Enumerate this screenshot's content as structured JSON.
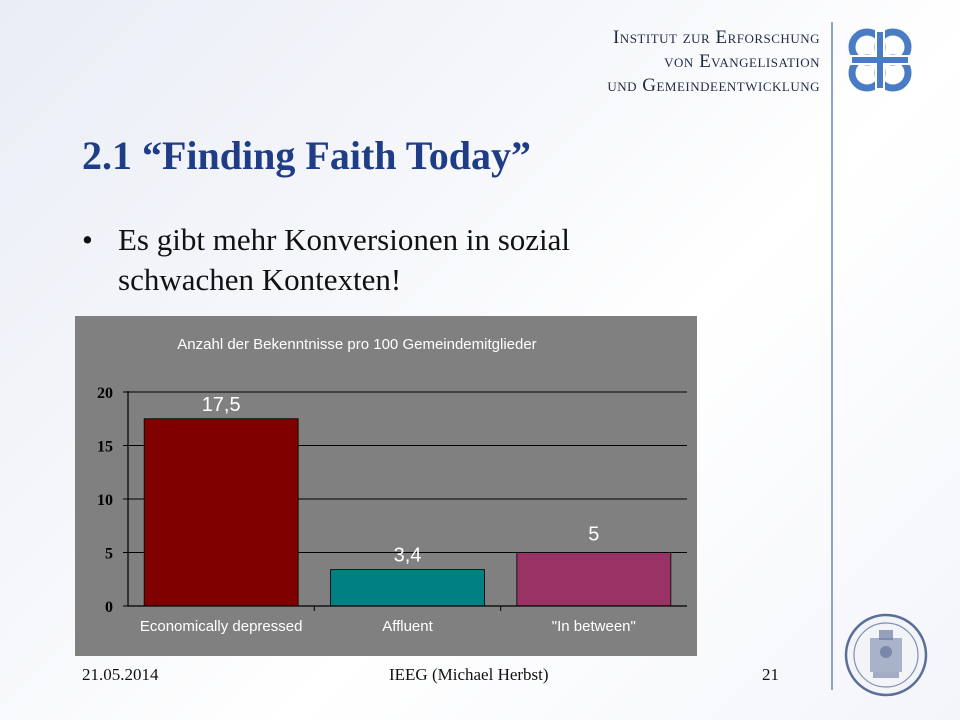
{
  "header": {
    "institute_lines": [
      "Institut zur Erforschung",
      "von Evangelisation",
      "und Gemeindeentwicklung"
    ],
    "logo_icon": "ieeg-knot-logo-icon",
    "seal_icon": "university-seal-icon",
    "accent_color": "#1f3c86",
    "logo_color": "#4a7cc6"
  },
  "slide": {
    "title": "2.1 “Finding Faith Today”",
    "bullet": "Es gibt mehr Konversionen in sozial schwachen Kontexten!"
  },
  "chart_data": {
    "type": "bar",
    "title": "Anzahl der Bekenntnisse pro 100 Gemeindemitglieder",
    "categories": [
      "Economically depressed",
      "Affluent",
      "\"In between\""
    ],
    "values": [
      17.5,
      3.4,
      5
    ],
    "value_labels": [
      "17,5",
      "3,4",
      "5"
    ],
    "colors": [
      "#800000",
      "#008080",
      "#993366"
    ],
    "xlabel": "",
    "ylabel": "",
    "ylim": [
      0,
      20
    ],
    "yticks": [
      0,
      5,
      10,
      15,
      20
    ],
    "grid": true,
    "background": "#808080"
  },
  "footer": {
    "date": "21.05.2014",
    "author": "IEEG (Michael Herbst)",
    "page": "21"
  }
}
